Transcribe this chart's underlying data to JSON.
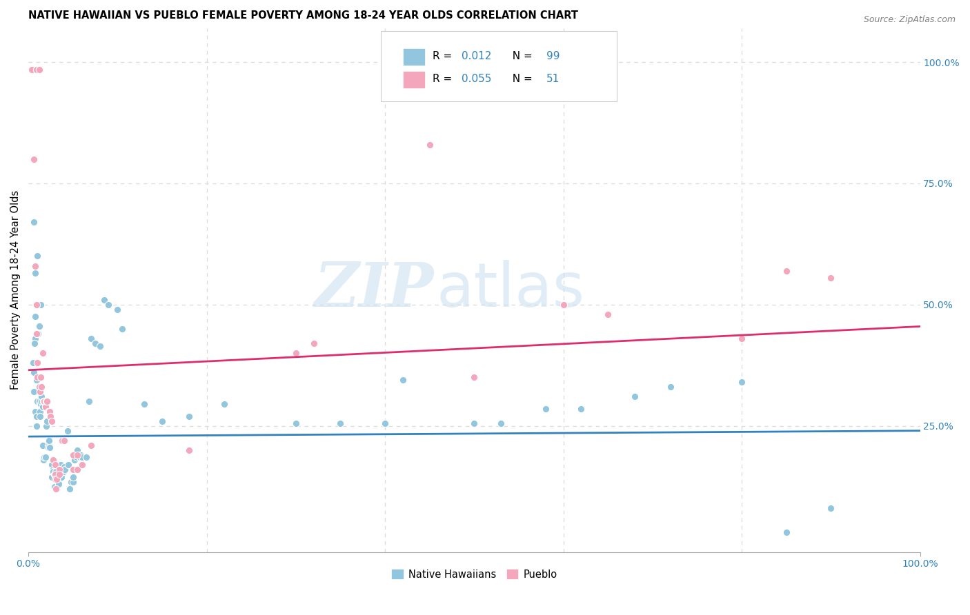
{
  "title": "NATIVE HAWAIIAN VS PUEBLO FEMALE POVERTY AMONG 18-24 YEAR OLDS CORRELATION CHART",
  "source": "Source: ZipAtlas.com",
  "ylabel": "Female Poverty Among 18-24 Year Olds",
  "xlim": [
    0,
    1
  ],
  "ylim": [
    -0.01,
    1.07
  ],
  "ytick_positions": [
    0.25,
    0.5,
    0.75,
    1.0
  ],
  "xtick_positions": [
    0.0,
    1.0
  ],
  "grid_color": "#dddddd",
  "background_color": "#ffffff",
  "watermark_zip": "ZIP",
  "watermark_atlas": "atlas",
  "blue_color": "#92c5de",
  "pink_color": "#f4a6bc",
  "blue_line_color": "#3182bd",
  "pink_line_color": "#de2d6d",
  "r_label_color": "#3182bd",
  "blue_scatter": [
    [
      0.004,
      0.985
    ],
    [
      0.01,
      0.985
    ],
    [
      0.013,
      0.985
    ],
    [
      0.006,
      0.67
    ],
    [
      0.008,
      0.565
    ],
    [
      0.008,
      0.475
    ],
    [
      0.008,
      0.43
    ],
    [
      0.01,
      0.6
    ],
    [
      0.012,
      0.455
    ],
    [
      0.014,
      0.5
    ],
    [
      0.005,
      0.38
    ],
    [
      0.006,
      0.36
    ],
    [
      0.006,
      0.32
    ],
    [
      0.007,
      0.42
    ],
    [
      0.008,
      0.28
    ],
    [
      0.009,
      0.345
    ],
    [
      0.009,
      0.27
    ],
    [
      0.009,
      0.25
    ],
    [
      0.01,
      0.3
    ],
    [
      0.011,
      0.44
    ],
    [
      0.012,
      0.3
    ],
    [
      0.013,
      0.28
    ],
    [
      0.013,
      0.27
    ],
    [
      0.014,
      0.295
    ],
    [
      0.015,
      0.3
    ],
    [
      0.015,
      0.31
    ],
    [
      0.016,
      0.29
    ],
    [
      0.016,
      0.21
    ],
    [
      0.017,
      0.18
    ],
    [
      0.018,
      0.185
    ],
    [
      0.019,
      0.185
    ],
    [
      0.02,
      0.25
    ],
    [
      0.021,
      0.26
    ],
    [
      0.022,
      0.21
    ],
    [
      0.022,
      0.205
    ],
    [
      0.023,
      0.22
    ],
    [
      0.024,
      0.205
    ],
    [
      0.026,
      0.17
    ],
    [
      0.026,
      0.145
    ],
    [
      0.027,
      0.155
    ],
    [
      0.027,
      0.155
    ],
    [
      0.028,
      0.16
    ],
    [
      0.028,
      0.155
    ],
    [
      0.029,
      0.15
    ],
    [
      0.029,
      0.125
    ],
    [
      0.031,
      0.155
    ],
    [
      0.031,
      0.155
    ],
    [
      0.031,
      0.145
    ],
    [
      0.031,
      0.14
    ],
    [
      0.033,
      0.14
    ],
    [
      0.034,
      0.14
    ],
    [
      0.034,
      0.135
    ],
    [
      0.034,
      0.13
    ],
    [
      0.035,
      0.17
    ],
    [
      0.036,
      0.17
    ],
    [
      0.036,
      0.145
    ],
    [
      0.037,
      0.145
    ],
    [
      0.038,
      0.155
    ],
    [
      0.038,
      0.16
    ],
    [
      0.039,
      0.155
    ],
    [
      0.04,
      0.165
    ],
    [
      0.041,
      0.16
    ],
    [
      0.044,
      0.24
    ],
    [
      0.045,
      0.17
    ],
    [
      0.046,
      0.12
    ],
    [
      0.048,
      0.135
    ],
    [
      0.05,
      0.135
    ],
    [
      0.05,
      0.145
    ],
    [
      0.052,
      0.18
    ],
    [
      0.054,
      0.185
    ],
    [
      0.055,
      0.2
    ],
    [
      0.055,
      0.2
    ],
    [
      0.058,
      0.185
    ],
    [
      0.059,
      0.19
    ],
    [
      0.06,
      0.185
    ],
    [
      0.06,
      0.185
    ],
    [
      0.065,
      0.185
    ],
    [
      0.065,
      0.185
    ],
    [
      0.068,
      0.3
    ],
    [
      0.07,
      0.43
    ],
    [
      0.075,
      0.42
    ],
    [
      0.08,
      0.415
    ],
    [
      0.085,
      0.51
    ],
    [
      0.09,
      0.5
    ],
    [
      0.1,
      0.49
    ],
    [
      0.105,
      0.45
    ],
    [
      0.13,
      0.295
    ],
    [
      0.15,
      0.26
    ],
    [
      0.18,
      0.27
    ],
    [
      0.22,
      0.295
    ],
    [
      0.3,
      0.255
    ],
    [
      0.35,
      0.255
    ],
    [
      0.4,
      0.255
    ],
    [
      0.42,
      0.345
    ],
    [
      0.5,
      0.255
    ],
    [
      0.53,
      0.255
    ],
    [
      0.58,
      0.285
    ],
    [
      0.62,
      0.285
    ],
    [
      0.68,
      0.31
    ],
    [
      0.72,
      0.33
    ],
    [
      0.8,
      0.34
    ],
    [
      0.85,
      0.03
    ],
    [
      0.9,
      0.08
    ]
  ],
  "pink_scatter": [
    [
      0.004,
      0.985
    ],
    [
      0.009,
      0.985
    ],
    [
      0.012,
      0.985
    ],
    [
      0.006,
      0.8
    ],
    [
      0.008,
      0.58
    ],
    [
      0.009,
      0.5
    ],
    [
      0.009,
      0.44
    ],
    [
      0.01,
      0.38
    ],
    [
      0.01,
      0.35
    ],
    [
      0.012,
      0.33
    ],
    [
      0.013,
      0.32
    ],
    [
      0.014,
      0.35
    ],
    [
      0.015,
      0.33
    ],
    [
      0.016,
      0.4
    ],
    [
      0.017,
      0.3
    ],
    [
      0.018,
      0.3
    ],
    [
      0.019,
      0.29
    ],
    [
      0.02,
      0.3
    ],
    [
      0.021,
      0.3
    ],
    [
      0.022,
      0.28
    ],
    [
      0.023,
      0.28
    ],
    [
      0.024,
      0.28
    ],
    [
      0.025,
      0.27
    ],
    [
      0.026,
      0.26
    ],
    [
      0.028,
      0.18
    ],
    [
      0.03,
      0.17
    ],
    [
      0.03,
      0.15
    ],
    [
      0.03,
      0.14
    ],
    [
      0.031,
      0.12
    ],
    [
      0.032,
      0.14
    ],
    [
      0.035,
      0.16
    ],
    [
      0.035,
      0.15
    ],
    [
      0.037,
      0.22
    ],
    [
      0.038,
      0.22
    ],
    [
      0.04,
      0.22
    ],
    [
      0.05,
      0.19
    ],
    [
      0.05,
      0.16
    ],
    [
      0.055,
      0.16
    ],
    [
      0.055,
      0.19
    ],
    [
      0.06,
      0.17
    ],
    [
      0.07,
      0.21
    ],
    [
      0.18,
      0.2
    ],
    [
      0.3,
      0.4
    ],
    [
      0.32,
      0.42
    ],
    [
      0.45,
      0.83
    ],
    [
      0.5,
      0.35
    ],
    [
      0.6,
      0.5
    ],
    [
      0.65,
      0.48
    ],
    [
      0.8,
      0.43
    ],
    [
      0.85,
      0.57
    ],
    [
      0.9,
      0.555
    ]
  ],
  "blue_trendline": [
    [
      0.0,
      0.228
    ],
    [
      1.0,
      0.24
    ]
  ],
  "pink_trendline": [
    [
      0.0,
      0.365
    ],
    [
      1.0,
      0.455
    ]
  ]
}
